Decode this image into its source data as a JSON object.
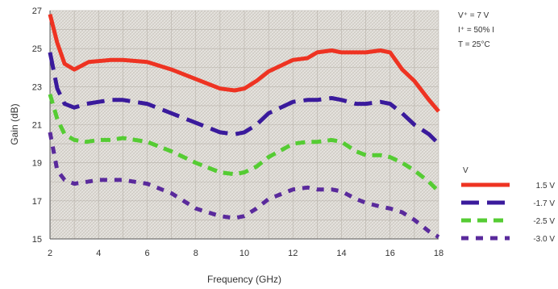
{
  "chart_data": {
    "type": "line",
    "xlabel": "Frequency (GHz)",
    "ylabel": "Gain (dB)",
    "xlim": [
      2,
      18
    ],
    "ylim": [
      15,
      27
    ],
    "xticks": [
      "2",
      "4",
      "6",
      "8",
      "10",
      "12",
      "14",
      "16",
      "18"
    ],
    "yticks": [
      "15",
      "17",
      "19",
      "21",
      "23",
      "25",
      "27"
    ],
    "grid": true,
    "legend_placement": "right",
    "legend_title": "V",
    "conditions": [
      "V⁺ = 7 V",
      "I⁺ = 50% I",
      "T = 25°C"
    ],
    "series": [
      {
        "name": "1.5 V",
        "color": "#ee3322",
        "dash": "solid",
        "x": [
          2.0,
          2.3,
          2.6,
          3.0,
          3.6,
          4.5,
          5.0,
          6.0,
          7.0,
          8.0,
          9.0,
          9.6,
          10.0,
          10.5,
          11.0,
          12.0,
          12.6,
          13.0,
          13.6,
          14.0,
          14.6,
          15.0,
          15.6,
          16.0,
          16.5,
          17.0,
          17.6,
          18.0
        ],
        "y": [
          26.8,
          25.3,
          24.2,
          23.9,
          24.3,
          24.4,
          24.4,
          24.3,
          23.9,
          23.4,
          22.9,
          22.8,
          22.9,
          23.3,
          23.8,
          24.4,
          24.5,
          24.8,
          24.9,
          24.8,
          24.8,
          24.8,
          24.9,
          24.8,
          23.9,
          23.3,
          22.3,
          21.7
        ]
      },
      {
        "name": "-1.7 V",
        "color": "#3a1a9c",
        "dash": "long",
        "x": [
          2.0,
          2.3,
          2.6,
          3.0,
          3.5,
          4.0,
          4.5,
          5.0,
          6.0,
          7.0,
          8.0,
          9.0,
          9.6,
          10.0,
          10.5,
          11.0,
          12.0,
          12.6,
          13.0,
          13.6,
          14.0,
          14.6,
          15.0,
          15.6,
          16.0,
          16.5,
          17.0,
          17.6,
          18.0
        ],
        "y": [
          24.8,
          22.9,
          22.1,
          21.9,
          22.1,
          22.2,
          22.3,
          22.3,
          22.1,
          21.6,
          21.1,
          20.6,
          20.5,
          20.6,
          21.0,
          21.6,
          22.2,
          22.3,
          22.3,
          22.4,
          22.3,
          22.1,
          22.1,
          22.2,
          22.1,
          21.6,
          21.0,
          20.5,
          20.0
        ]
      },
      {
        "name": "-2.5 V",
        "color": "#55cc33",
        "dash": "medium",
        "x": [
          2.0,
          2.3,
          2.6,
          3.0,
          3.5,
          4.0,
          4.5,
          5.0,
          6.0,
          7.0,
          8.0,
          9.0,
          9.6,
          10.0,
          10.5,
          11.0,
          12.0,
          12.6,
          13.0,
          13.6,
          14.0,
          14.6,
          15.0,
          15.6,
          16.0,
          16.5,
          17.0,
          17.6,
          18.0
        ],
        "y": [
          22.6,
          21.3,
          20.5,
          20.2,
          20.1,
          20.2,
          20.2,
          20.3,
          20.1,
          19.6,
          19.0,
          18.5,
          18.4,
          18.5,
          18.8,
          19.3,
          20.0,
          20.1,
          20.1,
          20.2,
          20.1,
          19.6,
          19.4,
          19.4,
          19.3,
          19.0,
          18.6,
          18.0,
          17.5
        ]
      },
      {
        "name": "-3.0 V",
        "color": "#5a2a9c",
        "dash": "short",
        "x": [
          2.0,
          2.3,
          2.6,
          3.0,
          3.5,
          4.0,
          4.5,
          5.0,
          6.0,
          7.0,
          8.0,
          9.0,
          9.6,
          10.0,
          10.5,
          11.0,
          12.0,
          12.6,
          13.0,
          13.6,
          14.0,
          14.6,
          15.0,
          15.6,
          16.0,
          16.5,
          17.0,
          17.6,
          18.0
        ],
        "y": [
          20.6,
          18.6,
          18.1,
          17.9,
          18.0,
          18.1,
          18.1,
          18.1,
          17.9,
          17.4,
          16.6,
          16.2,
          16.1,
          16.2,
          16.6,
          17.1,
          17.6,
          17.7,
          17.6,
          17.6,
          17.5,
          17.1,
          16.9,
          16.7,
          16.6,
          16.4,
          16.0,
          15.4,
          15.1
        ]
      }
    ]
  },
  "colors": {
    "plot_background": "#e8e6e2",
    "hatch": "#cfcac3",
    "grid": "#b7b2aa",
    "axis": "#555555"
  }
}
